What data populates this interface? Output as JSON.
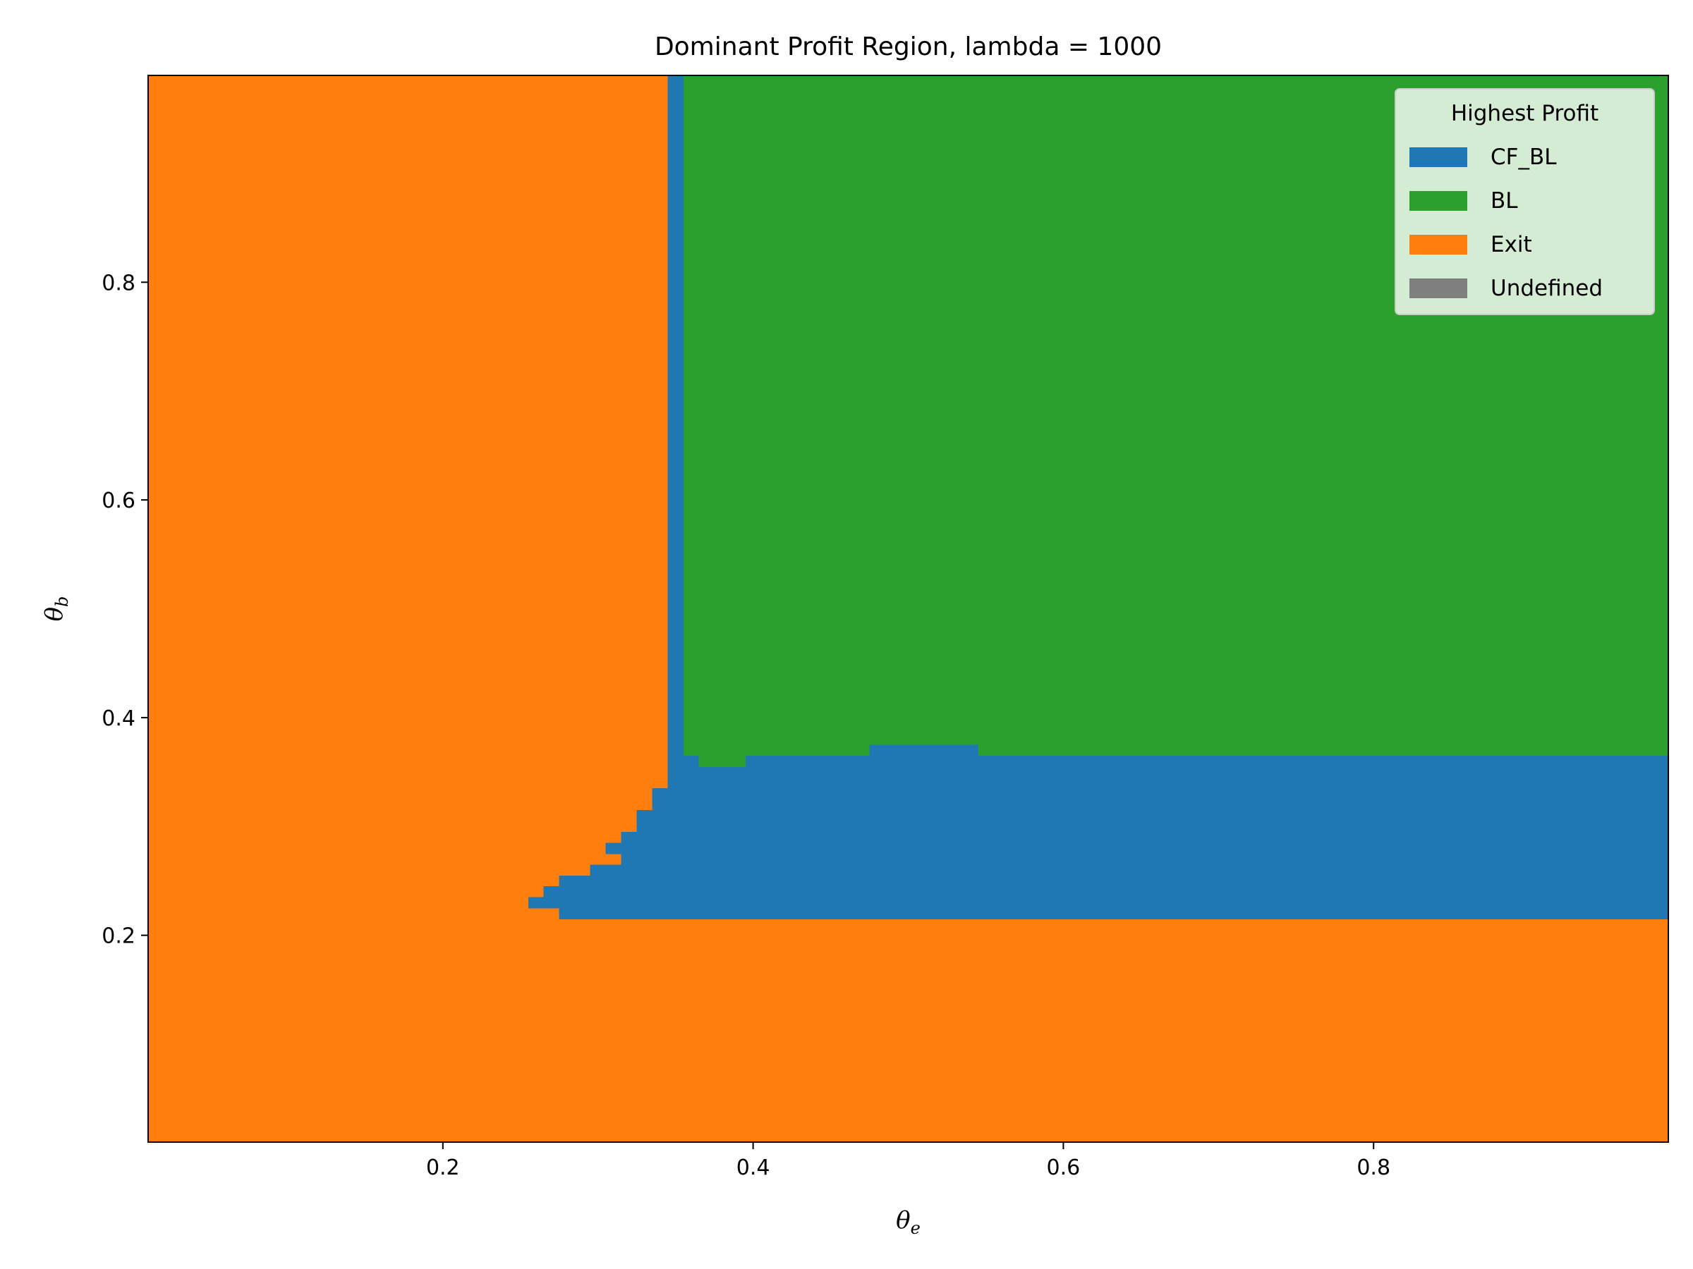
{
  "chart_data": {
    "type": "heatmap",
    "title": "Dominant Profit Region, lambda = 1000",
    "xlabel": {
      "main": "θ",
      "sub": "e"
    },
    "ylabel": {
      "main": "θ",
      "sub": "b"
    },
    "xlim": [
      0.01,
      0.99
    ],
    "ylim": [
      0.01,
      0.99
    ],
    "xticks": [
      {
        "value": 0.2,
        "label": "0.2"
      },
      {
        "value": 0.4,
        "label": "0.4"
      },
      {
        "value": 0.6,
        "label": "0.6"
      },
      {
        "value": 0.8,
        "label": "0.8"
      }
    ],
    "yticks": [
      {
        "value": 0.2,
        "label": "0.2"
      },
      {
        "value": 0.4,
        "label": "0.4"
      },
      {
        "value": 0.6,
        "label": "0.6"
      },
      {
        "value": 0.8,
        "label": "0.8"
      }
    ],
    "legend": {
      "title": "Highest Profit",
      "placement": "top-right",
      "entries": [
        {
          "key": "cf_bl",
          "label": "CF_BL",
          "color": "#1f77b4"
        },
        {
          "key": "bl",
          "label": "BL",
          "color": "#2ca02c"
        },
        {
          "key": "exit",
          "label": "Exit",
          "color": "#ff7f0e"
        },
        {
          "key": "undefined",
          "label": "Undefined",
          "color": "#7f7f7f"
        }
      ]
    },
    "background_category": "exit",
    "regions": [
      {
        "category": "bl",
        "x": [
          0.355,
          0.99
        ],
        "y": [
          0.365,
          0.99
        ]
      },
      {
        "category": "cf_bl",
        "x": [
          0.345,
          0.355
        ],
        "y": [
          0.335,
          0.99
        ]
      },
      {
        "category": "cf_bl",
        "x": [
          0.275,
          0.99
        ],
        "y": [
          0.215,
          0.255
        ]
      },
      {
        "category": "cf_bl",
        "x": [
          0.255,
          0.275
        ],
        "y": [
          0.225,
          0.235
        ]
      },
      {
        "category": "cf_bl",
        "x": [
          0.265,
          0.275
        ],
        "y": [
          0.235,
          0.245
        ]
      },
      {
        "category": "cf_bl",
        "x": [
          0.295,
          0.99
        ],
        "y": [
          0.255,
          0.265
        ]
      },
      {
        "category": "cf_bl",
        "x": [
          0.315,
          0.99
        ],
        "y": [
          0.265,
          0.285
        ]
      },
      {
        "category": "cf_bl",
        "x": [
          0.305,
          0.315
        ],
        "y": [
          0.275,
          0.285
        ]
      },
      {
        "category": "cf_bl",
        "x": [
          0.315,
          0.99
        ],
        "y": [
          0.285,
          0.295
        ]
      },
      {
        "category": "cf_bl",
        "x": [
          0.325,
          0.99
        ],
        "y": [
          0.295,
          0.315
        ]
      },
      {
        "category": "cf_bl",
        "x": [
          0.335,
          0.99
        ],
        "y": [
          0.315,
          0.335
        ]
      },
      {
        "category": "cf_bl",
        "x": [
          0.345,
          0.99
        ],
        "y": [
          0.335,
          0.355
        ]
      },
      {
        "category": "cf_bl",
        "x": [
          0.355,
          0.365
        ],
        "y": [
          0.355,
          0.365
        ]
      },
      {
        "category": "cf_bl",
        "x": [
          0.395,
          0.99
        ],
        "y": [
          0.355,
          0.365
        ]
      },
      {
        "category": "bl",
        "x": [
          0.365,
          0.395
        ],
        "y": [
          0.355,
          0.365
        ]
      },
      {
        "category": "cf_bl",
        "x": [
          0.475,
          0.545
        ],
        "y": [
          0.365,
          0.375
        ]
      }
    ]
  }
}
